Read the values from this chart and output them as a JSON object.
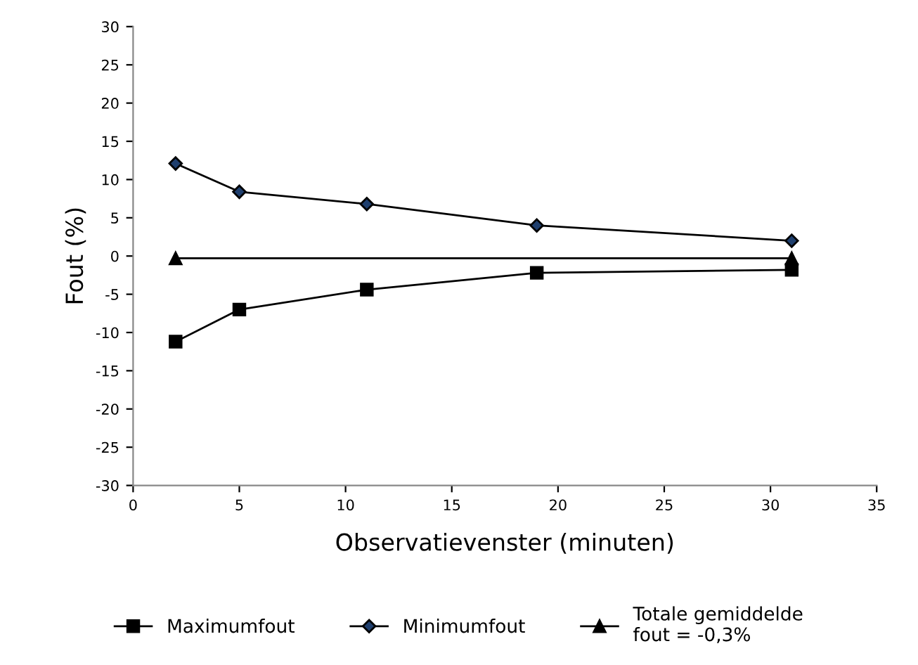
{
  "chart_data": {
    "type": "line",
    "xlabel": "Observatievenster (minuten)",
    "ylabel": "Fout (%)",
    "xlim": [
      0,
      35
    ],
    "xticks": [
      0,
      5,
      10,
      15,
      20,
      25,
      30,
      35
    ],
    "ylim": [
      -30,
      30
    ],
    "yticks": [
      -30,
      -25,
      -20,
      -15,
      -10,
      -5,
      0,
      5,
      10,
      15,
      20,
      25,
      30
    ],
    "grid": false,
    "legend": "bottom",
    "line_style": "solid",
    "series": [
      {
        "name": "Maximumfout",
        "color": "#000000",
        "marker": "square",
        "x": [
          2,
          5,
          11,
          19,
          31
        ],
        "values": [
          -11.2,
          -7.0,
          -4.4,
          -2.2,
          -1.8
        ]
      },
      {
        "name": "Minimumfout",
        "color": "#000000",
        "marker": "diamond",
        "x": [
          2,
          5,
          11,
          19,
          31
        ],
        "values": [
          12.1,
          8.4,
          6.8,
          4.0,
          2.0
        ]
      },
      {
        "name": "Totale gemiddelde\nfout = -0,3%",
        "color": "#000000",
        "marker": "triangle",
        "x": [
          2,
          31
        ],
        "values": [
          -0.3,
          -0.3
        ]
      }
    ]
  }
}
